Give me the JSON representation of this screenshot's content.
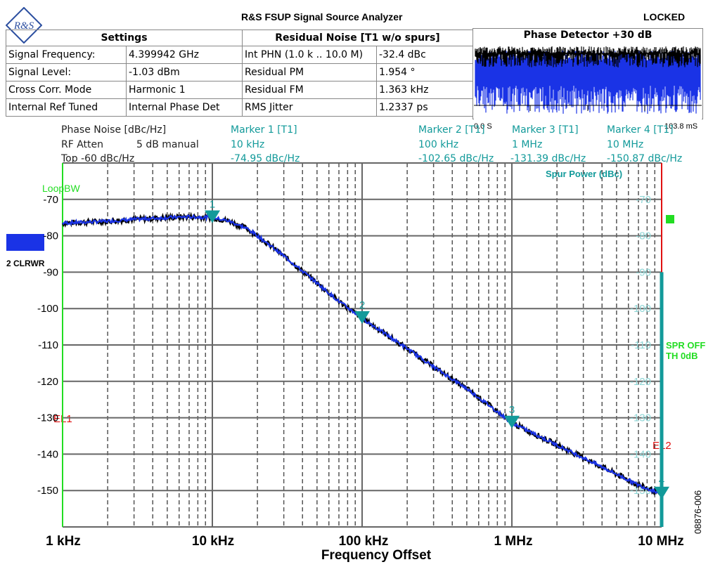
{
  "header": {
    "title": "R&S FSUP Signal Source Analyzer",
    "status": "LOCKED",
    "logo_text": "R&S"
  },
  "settings": {
    "heading": "Settings",
    "rows": [
      {
        "label": "Signal Frequency:",
        "value": "4.399942 GHz"
      },
      {
        "label": "Signal Level:",
        "value": "-1.03 dBm"
      },
      {
        "label": "Cross Corr. Mode",
        "value": "Harmonic 1"
      },
      {
        "label": "Internal Ref Tuned",
        "value": "Internal Phase Det"
      }
    ]
  },
  "residual": {
    "heading": "Residual Noise [T1 w/o spurs]",
    "rows": [
      {
        "label": "Int PHN (1.0 k .. 10.0 M)",
        "value": "-32.4 dBc"
      },
      {
        "label": "Residual PM",
        "value": "1.954 °"
      },
      {
        "label": "Residual FM",
        "value": "1.363 kHz"
      },
      {
        "label": "RMS Jitter",
        "value": "1.2337 ps"
      }
    ]
  },
  "phase_detector": {
    "heading": "Phase Detector +30 dB",
    "time_start": "0.0 S",
    "time_end": "103.8 mS"
  },
  "trace_info": {
    "line1": "Phase Noise [dBc/Hz]",
    "line2_label": "RF Atten",
    "line2_value": "5 dB manual",
    "line3": "Top -60 dBc/Hz"
  },
  "markers": [
    {
      "label": "Marker 1 [T1]",
      "freq": "10 kHz",
      "value": "-74.95 dBc/Hz",
      "id": "1",
      "x": 10000,
      "y": -74.95
    },
    {
      "label": "Marker 2 [T1]",
      "freq": "100 kHz",
      "value": "-102.65 dBc/Hz",
      "id": "2",
      "x": 100000,
      "y": -102.65
    },
    {
      "label": "Marker 3 [T1]",
      "freq": "1 MHz",
      "value": "-131.39 dBc/Hz",
      "id": "3",
      "x": 1000000,
      "y": -131.39
    },
    {
      "label": "Marker 4 [T1]",
      "freq": "10 MHz",
      "value": "-150.87 dBc/Hz",
      "id": "4",
      "x": 10000000,
      "y": -150.87
    }
  ],
  "left_panel": {
    "trace_label": "2 CLRWR",
    "loopbw": "LoopBW",
    "el1": "EL1",
    "el2": "EL2"
  },
  "right_panel": {
    "spur_power": "Spur Power (dBc)",
    "spr_off": "SPR OFF",
    "th": "TH 0dB",
    "figure_id": "08876-006"
  },
  "colors": {
    "trace_blue": "#1a33e6",
    "trace_black": "#000000",
    "marker_teal": "#129a9a",
    "loop_green": "#22dd22",
    "limit_red": "#e01010"
  },
  "chart_data": {
    "type": "line",
    "title": "Phase Noise [dBc/Hz]",
    "xlabel": "Frequency Offset",
    "ylabel": "Phase Noise [dBc/Hz]",
    "xscale": "log",
    "xlim": [
      1000,
      10000000
    ],
    "ylim": [
      -160,
      -60
    ],
    "x_ticks": [
      "1 kHz",
      "10 kHz",
      "100 kHz",
      "1 MHz",
      "10 MHz"
    ],
    "y_ticks": [
      -70,
      -80,
      -90,
      -100,
      -110,
      -120,
      -130,
      -140,
      -150
    ],
    "right_y_ticks": [
      -70,
      -80,
      -90,
      -100,
      -110,
      -120,
      -130,
      -140,
      -150
    ],
    "grid": true,
    "series": [
      {
        "name": "Phase Noise T1",
        "x": [
          1000,
          2000,
          3000,
          5000,
          7000,
          10000,
          13000,
          17000,
          20000,
          30000,
          50000,
          70000,
          100000,
          200000,
          300000,
          500000,
          700000,
          1000000,
          2000000,
          3000000,
          5000000,
          7000000,
          10000000
        ],
        "values": [
          -76.5,
          -76.0,
          -75.5,
          -75.0,
          -74.8,
          -74.95,
          -76.0,
          -78.0,
          -80.0,
          -85.5,
          -93.0,
          -98.0,
          -102.65,
          -111.0,
          -116.0,
          -122.0,
          -126.5,
          -131.39,
          -137.5,
          -141.0,
          -145.5,
          -148.5,
          -150.87
        ]
      }
    ]
  }
}
